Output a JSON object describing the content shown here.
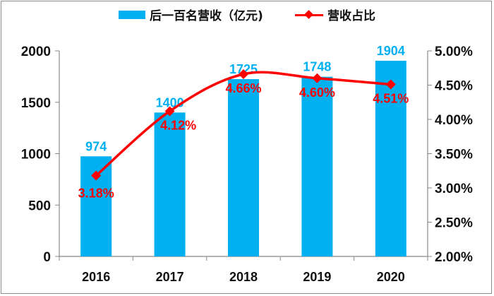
{
  "chart_data": {
    "type": "bar+line",
    "categories": [
      "2016",
      "2017",
      "2018",
      "2019",
      "2020"
    ],
    "series": [
      {
        "name": "后一百名营收（亿元)",
        "type": "bar",
        "axis": "left",
        "color": "#00b0f0",
        "values": [
          974,
          1400,
          1725,
          1748,
          1904
        ],
        "labels": [
          "974",
          "1400",
          "1725",
          "1748",
          "1904"
        ]
      },
      {
        "name": "营收占比",
        "type": "line",
        "axis": "right",
        "color": "#ff0000",
        "marker": "diamond",
        "smooth": true,
        "values": [
          3.18,
          4.12,
          4.66,
          4.6,
          4.51
        ],
        "labels": [
          "3.18%",
          "4.12%",
          "4.66%",
          "4.60%",
          "4.51%"
        ]
      }
    ],
    "y_left": {
      "range": [
        0,
        2000
      ],
      "ticks": [
        "0",
        "500",
        "1000",
        "1500",
        "2000"
      ]
    },
    "y_right": {
      "range": [
        2.0,
        5.0
      ],
      "ticks": [
        "2.00%",
        "2.50%",
        "3.00%",
        "3.50%",
        "4.00%",
        "4.50%",
        "5.00%"
      ]
    },
    "grid": false,
    "legend": "top"
  }
}
